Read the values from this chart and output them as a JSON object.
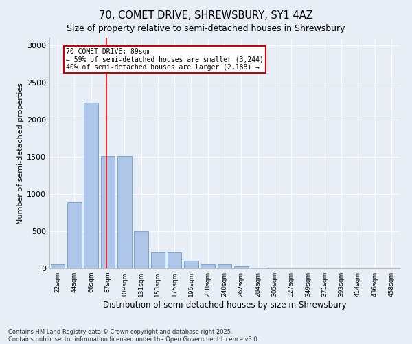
{
  "title": "70, COMET DRIVE, SHREWSBURY, SY1 4AZ",
  "subtitle": "Size of property relative to semi-detached houses in Shrewsbury",
  "xlabel": "Distribution of semi-detached houses by size in Shrewsbury",
  "ylabel": "Number of semi-detached properties",
  "categories": [
    "22sqm",
    "44sqm",
    "66sqm",
    "87sqm",
    "109sqm",
    "131sqm",
    "153sqm",
    "175sqm",
    "196sqm",
    "218sqm",
    "240sqm",
    "262sqm",
    "284sqm",
    "305sqm",
    "327sqm",
    "349sqm",
    "371sqm",
    "393sqm",
    "414sqm",
    "436sqm",
    "458sqm"
  ],
  "values": [
    55,
    890,
    2230,
    1510,
    1510,
    500,
    215,
    215,
    100,
    60,
    55,
    30,
    10,
    0,
    0,
    0,
    0,
    0,
    0,
    0,
    0
  ],
  "bar_color": "#aec6e8",
  "bar_edge_color": "#5a8fc2",
  "red_line_x": 2.93,
  "annotation_line1": "70 COMET DRIVE: 89sqm",
  "annotation_line2": "← 59% of semi-detached houses are smaller (3,244)",
  "annotation_line3": "40% of semi-detached houses are larger (2,188) →",
  "ylim": [
    0,
    3100
  ],
  "yticks": [
    0,
    500,
    1000,
    1500,
    2000,
    2500,
    3000
  ],
  "footnote1": "Contains HM Land Registry data © Crown copyright and database right 2025.",
  "footnote2": "Contains public sector information licensed under the Open Government Licence v3.0.",
  "bg_color": "#e8eef5",
  "plot_bg_color": "#e8eef5",
  "title_fontsize": 10,
  "annotation_box_color": "#ffffff",
  "annotation_box_edge": "#cc0000",
  "grid_color": "#ffffff",
  "bar_width": 0.85
}
